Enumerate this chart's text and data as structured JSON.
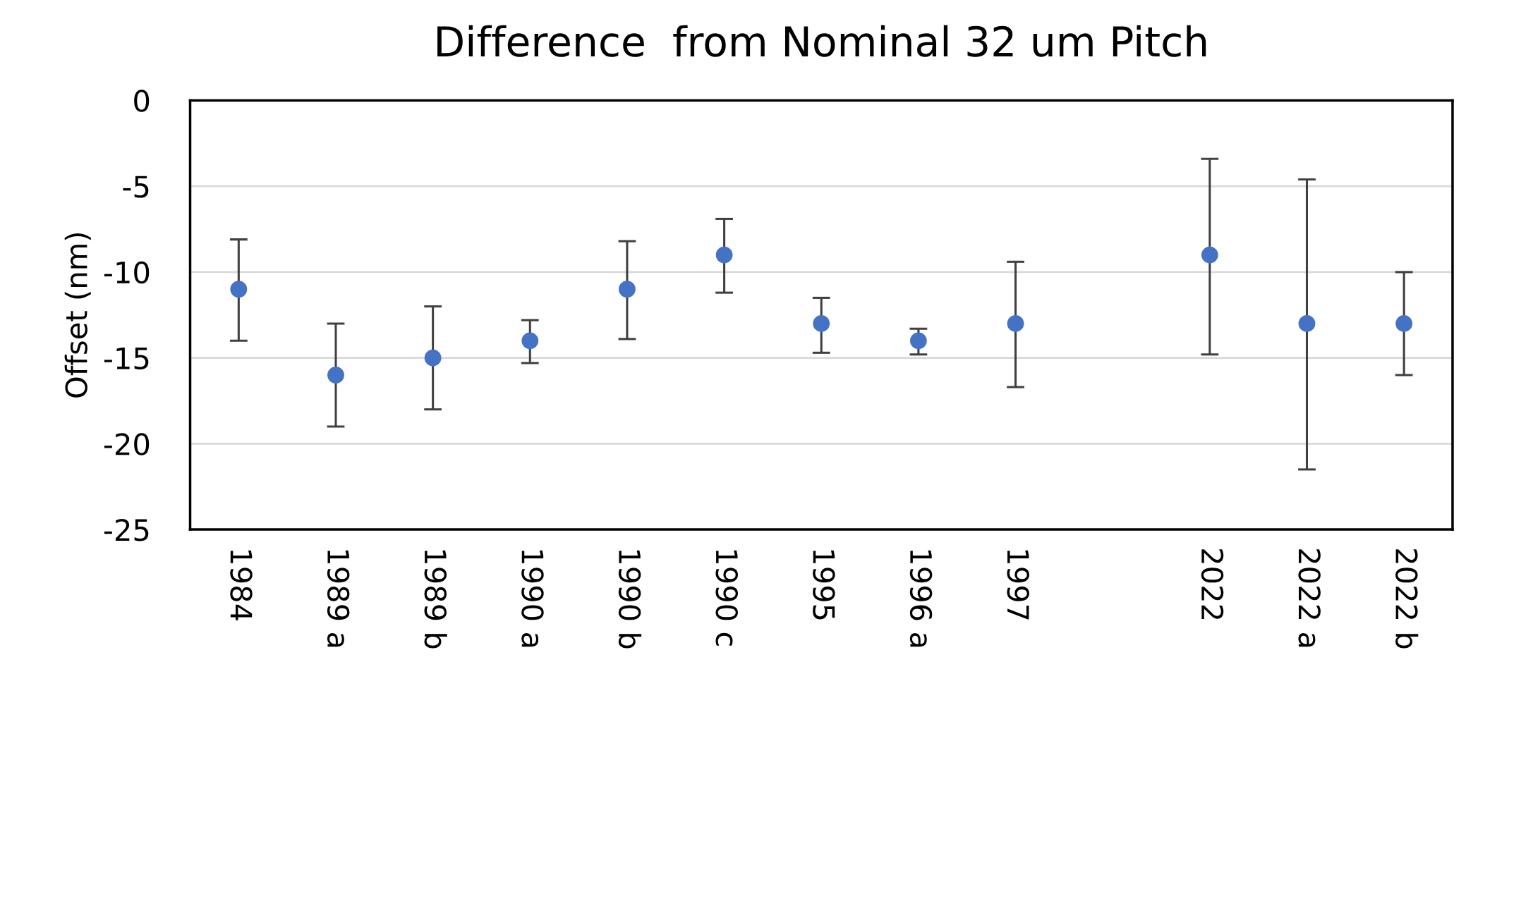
{
  "chart_data": {
    "type": "scatter",
    "title": "Difference  from Nominal 32 um Pitch",
    "ylabel": "Offset (nm)",
    "categories": [
      "1984",
      "1989 a",
      "1989 b",
      "1990 a",
      "1990 b",
      "1990 c",
      "1995",
      "1996 a",
      "1997",
      null,
      "2022",
      "2022 a",
      "2022 b"
    ],
    "series": [
      {
        "color": "#4472c4",
        "values": [
          -11,
          -16,
          -15,
          -14,
          -11,
          -9,
          -13,
          -14,
          -13,
          null,
          -9,
          -13,
          -13
        ],
        "errors": [
          [
            -14,
            -8.1
          ],
          [
            -19,
            -13
          ],
          [
            -18,
            -12
          ],
          [
            -15.3,
            -12.8
          ],
          [
            -13.9,
            -8.2
          ],
          [
            -11.2,
            -6.9
          ],
          [
            -14.7,
            -11.5
          ],
          [
            -14.8,
            -13.3
          ],
          [
            -16.7,
            -9.4
          ],
          null,
          [
            -14.8,
            -3.4
          ],
          [
            -21.5,
            -4.6
          ],
          [
            -16,
            -10
          ]
        ]
      }
    ],
    "ylim": [
      -25,
      0
    ],
    "yticks": [
      -25,
      -20,
      -15,
      -10,
      -5,
      0
    ],
    "grid": "y",
    "marker": "circle"
  }
}
